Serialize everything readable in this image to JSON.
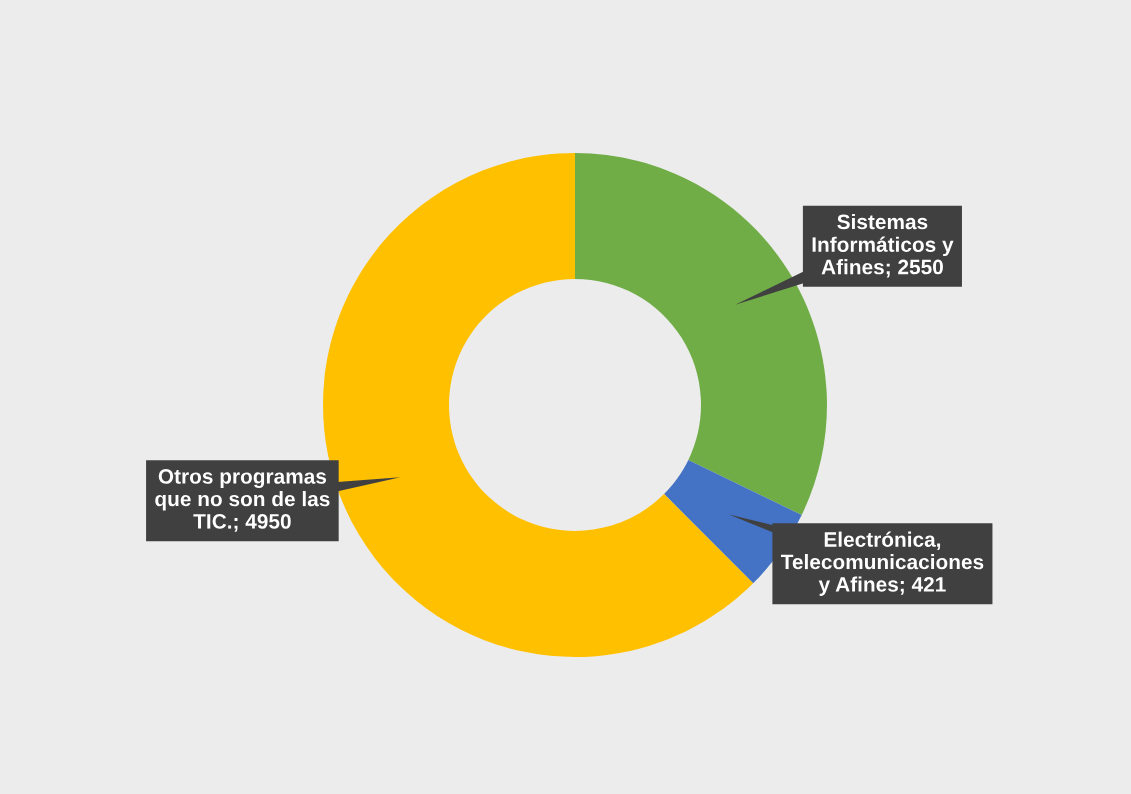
{
  "chart_data": {
    "type": "donut",
    "categories": [
      "Sistemas Informáticos y Afines",
      "Electrónica, Telecomunicaciones y Afines",
      "Otros programas que no son de las TIC."
    ],
    "values": [
      2550,
      421,
      4950
    ],
    "colors": [
      "#70ad47",
      "#4472c4",
      "#ffc000"
    ],
    "value_labels": [
      "; 2550",
      "; 421",
      "; 4950"
    ],
    "legend": false
  }
}
